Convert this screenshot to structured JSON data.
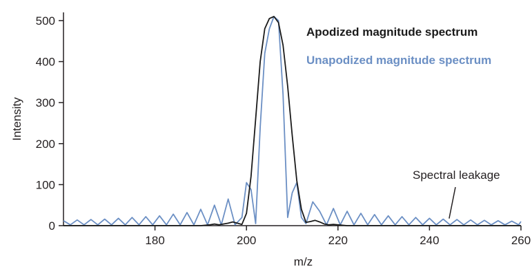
{
  "chart_data": {
    "type": "line",
    "title": "",
    "xlabel": "m/z",
    "ylabel": "Intensity",
    "xlim": [
      160,
      260
    ],
    "ylim": [
      0,
      520
    ],
    "xticks": [
      180,
      200,
      220,
      240,
      260
    ],
    "yticks": [
      0,
      100,
      200,
      300,
      400,
      500
    ],
    "grid": false,
    "legend_position": "top-right",
    "series": [
      {
        "name": "Apodized magnitude spectrum",
        "color": "#1a1a1a",
        "x": [
          160,
          190,
          192,
          193,
          194,
          196,
          197,
          198,
          199,
          200,
          201,
          202,
          203,
          204,
          205,
          206,
          207,
          208,
          209,
          210,
          211,
          212,
          213,
          214,
          215,
          216,
          217,
          218,
          219,
          220,
          222,
          260
        ],
        "y": [
          0,
          0,
          2,
          4,
          2,
          6,
          9,
          6,
          3,
          30,
          120,
          260,
          400,
          480,
          505,
          510,
          495,
          440,
          340,
          220,
          110,
          40,
          8,
          10,
          13,
          9,
          4,
          2,
          3,
          2,
          0,
          0
        ]
      },
      {
        "name": "Unapodized magnitude spectrum",
        "color": "#6b8fc4",
        "x": [
          160,
          161.5,
          163,
          164.5,
          166,
          167.5,
          169,
          170.5,
          172,
          173.5,
          175,
          176.5,
          178,
          179.5,
          181,
          182.5,
          184,
          185.5,
          187,
          188.5,
          190,
          191.5,
          193,
          194.5,
          196,
          197.5,
          199,
          200,
          201,
          202,
          203,
          204,
          205,
          206,
          207,
          208,
          209,
          210,
          211,
          212,
          213,
          214.5,
          216,
          217.5,
          219,
          220.5,
          222,
          223.5,
          225,
          226.5,
          228,
          229.5,
          231,
          232.5,
          234,
          235.5,
          237,
          238.5,
          240,
          241.5,
          243,
          244.5,
          246,
          247.5,
          249,
          250.5,
          252,
          253.5,
          255,
          256.5,
          258,
          259.5,
          260
        ],
        "y": [
          12,
          2,
          14,
          2,
          15,
          2,
          16,
          2,
          18,
          2,
          20,
          2,
          22,
          2,
          24,
          2,
          28,
          2,
          32,
          2,
          40,
          2,
          50,
          2,
          65,
          2,
          20,
          105,
          88,
          5,
          240,
          420,
          480,
          510,
          500,
          320,
          20,
          80,
          105,
          20,
          5,
          58,
          35,
          2,
          42,
          2,
          35,
          2,
          30,
          2,
          27,
          2,
          24,
          2,
          22,
          2,
          20,
          2,
          18,
          2,
          16,
          2,
          15,
          2,
          14,
          2,
          13,
          2,
          12,
          2,
          11,
          2,
          10
        ]
      }
    ],
    "annotations": [
      {
        "text": "Spectral leakage",
        "x": 244,
        "y": 14
      }
    ]
  }
}
